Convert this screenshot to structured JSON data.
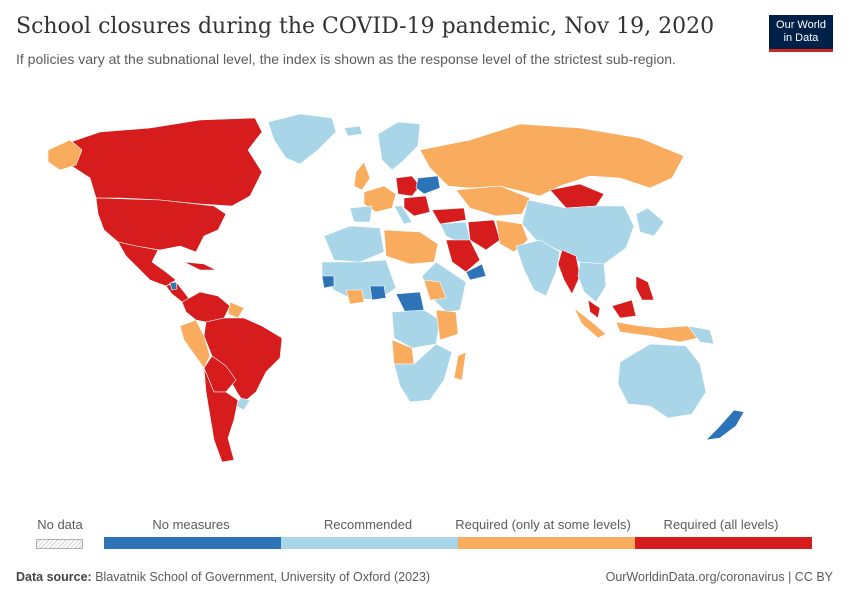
{
  "title": "School closures during the COVID-19 pandemic, Nov 19, 2020",
  "subtitle": "If policies vary at the subnational level, the index is shown as the response level of the strictest sub-region.",
  "logo": {
    "line1": "Our World",
    "line2": "in Data"
  },
  "colors": {
    "no_measures": "#2c73b8",
    "recommended": "#a8d6e8",
    "required_some": "#f9ab5e",
    "required_all": "#d71c1e",
    "no_data": "#e6e6e6",
    "sea": "#ffffff"
  },
  "legend": {
    "no_data": "No data",
    "no_measures": "No measures",
    "recommended": "Recommended",
    "required_some": "Required (only at some levels)",
    "required_all": "Required (all levels)"
  },
  "footer": {
    "source_label": "Data source:",
    "source": "Blavatnik School of Government, University of Oxford (2023)",
    "credit": "OurWorldinData.org/coronavirus | CC BY"
  }
}
